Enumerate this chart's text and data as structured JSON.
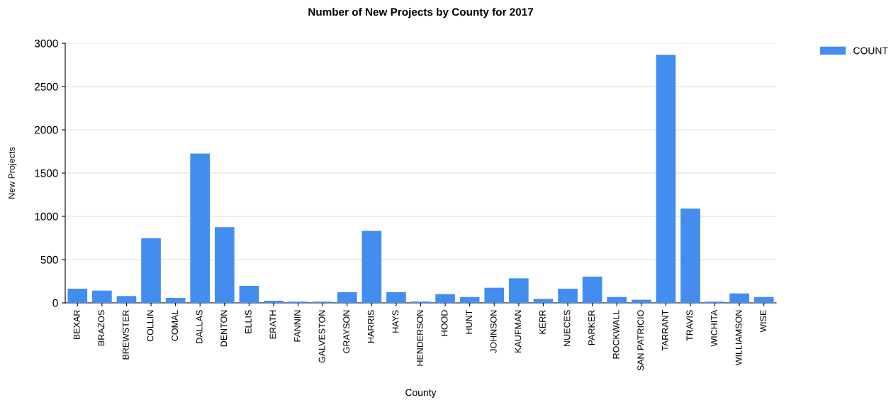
{
  "chart_data": {
    "type": "bar",
    "title": "Number of New Projects by County for 2017",
    "xlabel": "County",
    "ylabel": "New Projects",
    "categories": [
      "BEXAR",
      "BRAZOS",
      "BREWSTER",
      "COLLIN",
      "COMAL",
      "DALLAS",
      "DENTON",
      "ELLIS",
      "ERATH",
      "FANNIN",
      "GALVESTON",
      "GRAYSON",
      "HARRIS",
      "HAYS",
      "HENDERSON",
      "HOOD",
      "HUNT",
      "JOHNSON",
      "KAUFMAN",
      "KERR",
      "NUECES",
      "PARKER",
      "ROCKWALL",
      "SAN PATRICIO",
      "TARRANT",
      "TRAVIS",
      "WICHITA",
      "WILLIAMSON",
      "WISE"
    ],
    "series": [
      {
        "name": "COUNT",
        "color": "#438def",
        "values": [
          164,
          142,
          79,
          746,
          57,
          1725,
          875,
          197,
          25,
          14,
          14,
          123,
          831,
          123,
          15,
          101,
          68,
          175,
          284,
          46,
          164,
          304,
          68,
          36,
          2866,
          1091,
          14,
          109,
          68
        ]
      }
    ],
    "ylim": [
      0,
      3000
    ],
    "yticks": [
      0,
      500,
      1000,
      1500,
      2000,
      2500,
      3000
    ],
    "grid": "y",
    "legend": "top right"
  }
}
